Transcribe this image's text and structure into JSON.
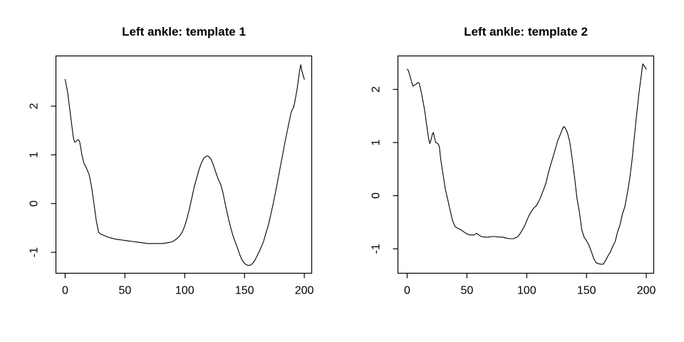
{
  "figure": {
    "background": "#ffffff",
    "foreground": "#000000"
  },
  "chart_data": [
    {
      "type": "line",
      "title": "Left ankle: template 1",
      "xlabel": "",
      "ylabel": "",
      "legend": null,
      "grid": false,
      "line_color": "#000000",
      "axis_color": "#000000",
      "xlim": [
        -7.7,
        206.2
      ],
      "ylim": [
        -1.43,
        3.03
      ],
      "xticks": [
        0,
        50,
        100,
        150,
        200
      ],
      "yticks": [
        -1,
        0,
        1,
        2
      ],
      "xtick_labels": [
        "0",
        "50",
        "100",
        "150",
        "200"
      ],
      "ytick_labels": [
        "-1",
        "0",
        "1",
        "2"
      ],
      "x": [
        0,
        2,
        4,
        6,
        7,
        8,
        9,
        10,
        11,
        12,
        13,
        14,
        15,
        16,
        18,
        20,
        22,
        24,
        26,
        28,
        30,
        33,
        36,
        39,
        42,
        45,
        48,
        51,
        54,
        57,
        60,
        63,
        66,
        69,
        72,
        75,
        78,
        81,
        84,
        87,
        90,
        93,
        96,
        98,
        100,
        102,
        104,
        106,
        108,
        110,
        112,
        114,
        116,
        118,
        119,
        120,
        122,
        124,
        126,
        128,
        130,
        132,
        134,
        136,
        138,
        140,
        142,
        144,
        146,
        148,
        150,
        152,
        154,
        156,
        158,
        160,
        162,
        164,
        166,
        168,
        170,
        172,
        174,
        176,
        178,
        180,
        182,
        184,
        186,
        188,
        189,
        190,
        191,
        192,
        194,
        196,
        197,
        198,
        200
      ],
      "values": [
        2.55,
        2.3,
        1.92,
        1.52,
        1.33,
        1.26,
        1.27,
        1.3,
        1.31,
        1.28,
        1.16,
        1.0,
        0.9,
        0.81,
        0.72,
        0.6,
        0.36,
        0.02,
        -0.35,
        -0.59,
        -0.63,
        -0.66,
        -0.69,
        -0.71,
        -0.73,
        -0.74,
        -0.75,
        -0.76,
        -0.77,
        -0.78,
        -0.79,
        -0.8,
        -0.81,
        -0.82,
        -0.82,
        -0.82,
        -0.82,
        -0.82,
        -0.81,
        -0.8,
        -0.78,
        -0.73,
        -0.66,
        -0.58,
        -0.46,
        -0.3,
        -0.1,
        0.12,
        0.35,
        0.52,
        0.7,
        0.84,
        0.93,
        0.97,
        0.98,
        0.97,
        0.91,
        0.79,
        0.64,
        0.5,
        0.4,
        0.22,
        -0.02,
        -0.25,
        -0.45,
        -0.63,
        -0.77,
        -0.9,
        -1.05,
        -1.16,
        -1.23,
        -1.26,
        -1.27,
        -1.25,
        -1.19,
        -1.1,
        -1.0,
        -0.89,
        -0.77,
        -0.6,
        -0.44,
        -0.22,
        0.0,
        0.24,
        0.5,
        0.76,
        1.02,
        1.28,
        1.52,
        1.76,
        1.87,
        1.93,
        1.97,
        2.08,
        2.35,
        2.72,
        2.85,
        2.72,
        2.55
      ]
    },
    {
      "type": "line",
      "title": "Left ankle: template 2",
      "xlabel": "",
      "ylabel": "",
      "legend": null,
      "grid": false,
      "line_color": "#000000",
      "axis_color": "#000000",
      "xlim": [
        -7.7,
        206.2
      ],
      "ylim": [
        -1.46,
        2.63
      ],
      "xticks": [
        0,
        50,
        100,
        150,
        200
      ],
      "yticks": [
        -1,
        0,
        1,
        2
      ],
      "xtick_labels": [
        "0",
        "50",
        "100",
        "150",
        "200"
      ],
      "ytick_labels": [
        "-1",
        "0",
        "1",
        "2"
      ],
      "x": [
        0,
        1,
        2,
        3,
        4,
        5,
        6,
        7,
        8,
        9,
        10,
        11,
        12,
        13,
        14,
        15,
        16,
        17,
        18,
        19,
        20,
        21,
        22,
        23,
        24,
        25,
        26,
        27,
        28,
        29,
        30,
        32,
        34,
        36,
        38,
        40,
        42,
        44,
        46,
        48,
        50,
        53,
        56,
        58,
        60,
        62,
        65,
        68,
        71,
        74,
        77,
        80,
        83,
        86,
        89,
        92,
        94,
        96,
        98,
        100,
        102,
        104,
        106,
        108,
        110,
        112,
        114,
        116,
        118,
        120,
        122,
        124,
        126,
        128,
        130,
        131,
        132,
        134,
        136,
        138,
        140,
        142,
        144,
        146,
        148,
        150,
        152,
        154,
        156,
        158,
        160,
        162,
        164,
        166,
        168,
        170,
        172,
        174,
        176,
        178,
        180,
        182,
        184,
        186,
        188,
        190,
        192,
        194,
        196,
        197,
        198,
        200
      ],
      "values": [
        2.38,
        2.36,
        2.28,
        2.2,
        2.12,
        2.06,
        2.08,
        2.09,
        2.11,
        2.13,
        2.12,
        2.03,
        1.93,
        1.81,
        1.69,
        1.55,
        1.38,
        1.22,
        1.07,
        0.98,
        1.05,
        1.15,
        1.19,
        1.08,
        1.0,
        0.99,
        0.97,
        0.92,
        0.7,
        0.55,
        0.4,
        0.12,
        -0.08,
        -0.28,
        -0.47,
        -0.58,
        -0.61,
        -0.63,
        -0.66,
        -0.69,
        -0.72,
        -0.74,
        -0.74,
        -0.71,
        -0.74,
        -0.77,
        -0.78,
        -0.78,
        -0.77,
        -0.77,
        -0.78,
        -0.78,
        -0.8,
        -0.81,
        -0.81,
        -0.78,
        -0.73,
        -0.66,
        -0.58,
        -0.47,
        -0.37,
        -0.29,
        -0.23,
        -0.19,
        -0.11,
        -0.01,
        0.11,
        0.23,
        0.42,
        0.58,
        0.73,
        0.88,
        1.04,
        1.15,
        1.26,
        1.3,
        1.28,
        1.19,
        1.01,
        0.7,
        0.35,
        -0.04,
        -0.3,
        -0.64,
        -0.78,
        -0.85,
        -0.93,
        -1.05,
        -1.18,
        -1.26,
        -1.28,
        -1.29,
        -1.29,
        -1.22,
        -1.13,
        -1.06,
        -0.95,
        -0.86,
        -0.68,
        -0.55,
        -0.35,
        -0.21,
        0.02,
        0.3,
        0.66,
        1.1,
        1.55,
        1.95,
        2.3,
        2.48,
        2.45,
        2.38
      ]
    }
  ]
}
